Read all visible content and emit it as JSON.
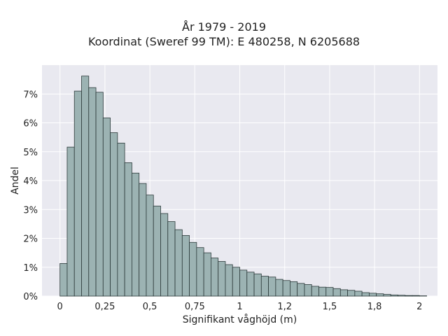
{
  "chart_data": {
    "type": "bar",
    "title": "År 1979 - 2019",
    "subtitle": "Koordinat (Sweref 99 TM): E 480258, N 6205688",
    "xlabel": "Signifikant våghöjd (m)",
    "ylabel": "Andel",
    "x_ticks": [
      {
        "value": 0,
        "label": "0"
      },
      {
        "value": 0.25,
        "label": "0,25"
      },
      {
        "value": 0.5,
        "label": "0,5"
      },
      {
        "value": 0.75,
        "label": "0,75"
      },
      {
        "value": 1,
        "label": "1"
      },
      {
        "value": 1.25,
        "label": "1,2"
      },
      {
        "value": 1.5,
        "label": "1,5"
      },
      {
        "value": 1.75,
        "label": "1,8"
      },
      {
        "value": 2,
        "label": "2"
      }
    ],
    "y_ticks": [
      {
        "value": 0,
        "label": "0%"
      },
      {
        "value": 1,
        "label": "1%"
      },
      {
        "value": 2,
        "label": "2%"
      },
      {
        "value": 3,
        "label": "3%"
      },
      {
        "value": 4,
        "label": "4%"
      },
      {
        "value": 5,
        "label": "5%"
      },
      {
        "value": 6,
        "label": "6%"
      },
      {
        "value": 7,
        "label": "7%"
      }
    ],
    "xlim": [
      -0.1,
      2.1
    ],
    "ylim": [
      0,
      8.0
    ],
    "bin_width": 0.04,
    "bin_start": 0.0,
    "values": [
      1.13,
      5.16,
      7.1,
      7.62,
      7.22,
      7.06,
      6.17,
      5.66,
      5.3,
      4.62,
      4.26,
      3.9,
      3.5,
      3.12,
      2.86,
      2.58,
      2.3,
      2.1,
      1.86,
      1.68,
      1.5,
      1.32,
      1.2,
      1.09,
      1.0,
      0.9,
      0.83,
      0.77,
      0.69,
      0.66,
      0.58,
      0.54,
      0.5,
      0.44,
      0.4,
      0.34,
      0.31,
      0.3,
      0.26,
      0.22,
      0.2,
      0.17,
      0.12,
      0.1,
      0.08,
      0.06,
      0.04,
      0.03,
      0.02,
      0.02,
      0.01
    ],
    "grid": true,
    "colors": {
      "background": "#e9e9f0",
      "bar_fill": "#9cb3b3",
      "bar_edge": "#2c3a3a",
      "grid": "#ffffff"
    }
  }
}
